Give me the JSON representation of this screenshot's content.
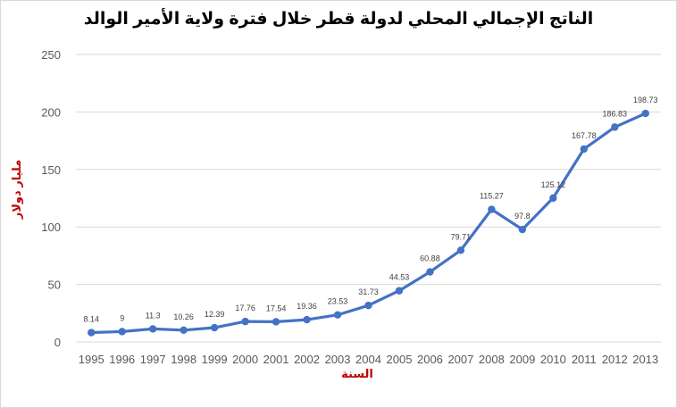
{
  "colors": {
    "series": "#4472c4",
    "axis_title": "#c00000",
    "grid": "#d9d9d9",
    "tick": "#595959"
  },
  "chart_data": {
    "type": "line",
    "title": "الناتج الإجمالي المحلي لدولة قطر خلال فترة ولاية الأمير الوالد",
    "xlabel": "السنة",
    "ylabel": "مليار دولار",
    "x": [
      "1995",
      "1996",
      "1997",
      "1998",
      "1999",
      "2000",
      "2001",
      "2002",
      "2003",
      "2004",
      "2005",
      "2006",
      "2007",
      "2008",
      "2009",
      "2010",
      "2011",
      "2012",
      "2013"
    ],
    "series": [
      {
        "values": [
          8.14,
          9,
          11.3,
          10.26,
          12.39,
          17.76,
          17.54,
          19.36,
          23.53,
          31.73,
          44.53,
          60.88,
          79.71,
          115.27,
          97.8,
          125.12,
          167.78,
          186.83,
          198.73
        ],
        "labels": [
          "8.14",
          "9",
          "11.3",
          "10.26",
          "12.39",
          "17.76",
          "17.54",
          "19.36",
          "23.53",
          "31.73",
          "44.53",
          "60.88",
          "79.71",
          "115.27",
          "97.8",
          "125.12",
          "167.78",
          "186.83",
          "198.73"
        ]
      }
    ],
    "ylim": [
      0,
      250
    ],
    "yticks": [
      "0",
      "50",
      "100",
      "150",
      "200",
      "250"
    ],
    "grid": true,
    "legend": "none"
  }
}
